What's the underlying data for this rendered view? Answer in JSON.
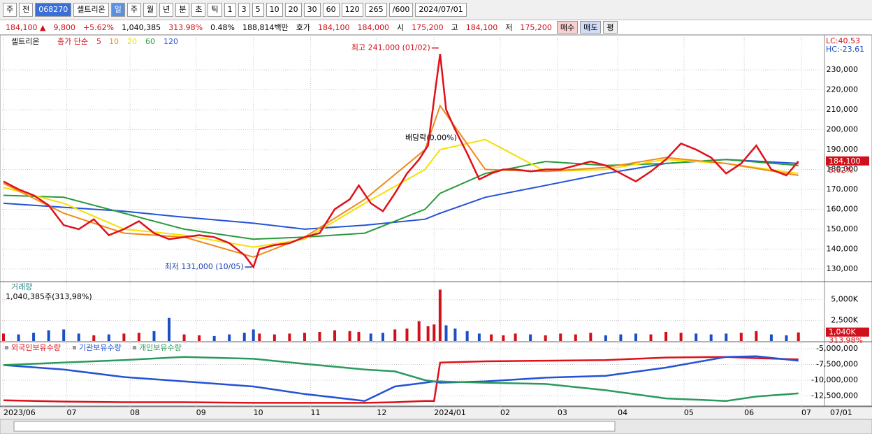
{
  "toolbar": {
    "items": [
      "주",
      "전",
      "068270",
      "셀트리온",
      "일",
      "주",
      "월",
      "년",
      "분",
      "초",
      "틱",
      "1",
      "3",
      "5",
      "10",
      "20",
      "30",
      "60",
      "120",
      "265",
      "/600",
      "2024/07/01"
    ]
  },
  "infobar": {
    "items": [
      {
        "text": "184,100 ▲",
        "color": "#d0101a"
      },
      {
        "text": "9,800",
        "color": "#d0101a"
      },
      {
        "text": "+5.62%",
        "color": "#d0101a"
      },
      {
        "text": "1,040,385",
        "color": "#000"
      },
      {
        "text": "313.98%",
        "color": "#d0101a"
      },
      {
        "text": "0.48%",
        "color": "#000"
      },
      {
        "text": "188,814백만",
        "color": "#000"
      },
      {
        "text": "호가",
        "color": "#000"
      },
      {
        "text": "184,100",
        "color": "#d0101a"
      },
      {
        "text": "184,000",
        "color": "#d0101a"
      },
      {
        "text": "시",
        "color": "#000"
      },
      {
        "text": "175,200",
        "color": "#d0101a"
      },
      {
        "text": "고",
        "color": "#000"
      },
      {
        "text": "184,100",
        "color": "#d0101a"
      },
      {
        "text": "저",
        "color": "#000"
      },
      {
        "text": "175,200",
        "color": "#d0101a"
      },
      {
        "text": "매수",
        "color": "#000"
      },
      {
        "text": "매도",
        "color": "#000"
      },
      {
        "text": "평",
        "color": "#000"
      }
    ]
  },
  "chart_data": [
    {
      "type": "line",
      "title": "셀트리온",
      "legend_label": "종가 단순",
      "xlim": [
        0,
        265
      ],
      "xticks": [
        {
          "value": 0,
          "label": "2023/06"
        },
        {
          "value": 21,
          "label": "07"
        },
        {
          "value": 42,
          "label": "08"
        },
        {
          "value": 64,
          "label": "09"
        },
        {
          "value": 83,
          "label": "10"
        },
        {
          "value": 102,
          "label": "11"
        },
        {
          "value": 124,
          "label": "12"
        },
        {
          "value": 143,
          "label": "2024/01"
        },
        {
          "value": 165,
          "label": "02"
        },
        {
          "value": 184,
          "label": "03"
        },
        {
          "value": 204,
          "label": "04"
        },
        {
          "value": 226,
          "label": "05"
        },
        {
          "value": 246,
          "label": "06"
        },
        {
          "value": 265,
          "label": "07"
        }
      ],
      "xtick_right_label": "07/01",
      "ylim": [
        124000,
        245800
      ],
      "yticks": [
        {
          "value": 130000,
          "label": "130,000"
        },
        {
          "value": 140000,
          "label": "140,000"
        },
        {
          "value": 150000,
          "label": "150,000"
        },
        {
          "value": 160000,
          "label": "160,000"
        },
        {
          "value": 170000,
          "label": "170,000"
        },
        {
          "value": 180000,
          "label": "180,000"
        },
        {
          "value": 190000,
          "label": "190,000"
        },
        {
          "value": 200000,
          "label": "200,000"
        },
        {
          "value": 210000,
          "label": "210,000"
        },
        {
          "value": 220000,
          "label": "220,000"
        },
        {
          "value": 230000,
          "label": "230,000"
        }
      ],
      "series": [
        {
          "name": "5",
          "color": "#e0101a",
          "x": [
            0,
            5,
            10,
            15,
            20,
            25,
            30,
            35,
            40,
            45,
            50,
            55,
            60,
            65,
            70,
            75,
            80,
            83,
            85,
            90,
            95,
            100,
            105,
            110,
            115,
            118,
            122,
            126,
            130,
            134,
            138,
            141,
            143,
            145,
            147,
            150,
            154,
            158,
            162,
            166,
            170,
            175,
            180,
            185,
            190,
            195,
            200,
            205,
            210,
            215,
            220,
            225,
            230,
            235,
            240,
            245,
            250,
            255,
            260,
            264
          ],
          "values": [
            174000,
            170000,
            167000,
            162000,
            152000,
            150000,
            155000,
            147000,
            150000,
            154000,
            148000,
            145000,
            146000,
            147000,
            146000,
            143000,
            137000,
            131000,
            140000,
            142000,
            143000,
            146000,
            148000,
            160000,
            165000,
            172000,
            163000,
            159000,
            168000,
            178000,
            185000,
            192000,
            215000,
            238000,
            210000,
            200000,
            188000,
            175000,
            178000,
            180000,
            180000,
            179000,
            180000,
            180000,
            182000,
            184000,
            182000,
            178000,
            174000,
            179000,
            185000,
            193000,
            190000,
            186000,
            178000,
            183000,
            192000,
            180000,
            177000,
            184100
          ]
        },
        {
          "name": "10",
          "color": "#f08a1c",
          "x": [
            0,
            20,
            40,
            60,
            83,
            100,
            120,
            140,
            145,
            160,
            180,
            200,
            220,
            240,
            264
          ],
          "values": [
            173000,
            158000,
            148000,
            146000,
            136000,
            146000,
            165000,
            190000,
            212000,
            180000,
            179000,
            181000,
            186000,
            183000,
            177000
          ]
        },
        {
          "name": "20",
          "color": "#f5e000",
          "x": [
            0,
            20,
            40,
            60,
            83,
            100,
            120,
            140,
            145,
            160,
            180,
            200,
            220,
            240,
            264
          ],
          "values": [
            171000,
            163000,
            150000,
            147000,
            141000,
            145000,
            163000,
            180000,
            190000,
            195000,
            179000,
            180000,
            185000,
            183000,
            178000
          ]
        },
        {
          "name": "60",
          "color": "#2a9a3c",
          "x": [
            0,
            20,
            40,
            60,
            83,
            100,
            120,
            140,
            145,
            160,
            180,
            200,
            220,
            240,
            264
          ],
          "values": [
            167000,
            166000,
            158000,
            150000,
            145000,
            146000,
            148000,
            160000,
            168000,
            178000,
            184000,
            182000,
            183000,
            185000,
            182000
          ]
        },
        {
          "name": "120",
          "color": "#2452d6",
          "x": [
            0,
            20,
            40,
            60,
            83,
            100,
            120,
            140,
            145,
            160,
            180,
            200,
            220,
            240,
            264
          ],
          "values": [
            163000,
            161000,
            159000,
            156000,
            153000,
            150000,
            152000,
            155000,
            158000,
            166000,
            172000,
            178000,
            183000,
            185000,
            183000
          ]
        }
      ],
      "annotations": [
        {
          "text": "최고 241,000 (01/02)",
          "x": 145,
          "y": 241000
        },
        {
          "text": "최저 131,000 (10/05)",
          "x": 83,
          "y": 131000
        },
        {
          "text": "배당락(0.00%)",
          "x": 142,
          "y": 193000
        }
      ],
      "last_label": "184,100",
      "change_label": "5.62%",
      "lc_label": "LC:40.53",
      "hc_label": "HC:-23.61"
    },
    {
      "type": "bar",
      "title": "거래량",
      "subtitle": "1,040,385주(313,98%)",
      "up_color": "#d0101a",
      "down_color": "#1d4fc4",
      "ylim": [
        0,
        7000000
      ],
      "yticks": [
        {
          "value": 2500000,
          "label": "2,500K"
        },
        {
          "value": 5000000,
          "label": "5,000K"
        }
      ],
      "values": [
        900000,
        800000,
        1000000,
        1300000,
        1400000,
        900000,
        700000,
        800000,
        900000,
        1000000,
        1200000,
        2800000,
        800000,
        700000,
        600000,
        800000,
        1000000,
        1400000,
        900000,
        800000,
        900000,
        1000000,
        1100000,
        1300000,
        1200000,
        1100000,
        900000,
        1000000,
        1400000,
        1500000,
        2400000,
        1800000,
        2000000,
        6200000,
        1900000,
        1500000,
        1200000,
        900000,
        800000,
        700000,
        900000,
        800000,
        700000,
        900000,
        800000,
        1000000,
        700000,
        800000,
        900000,
        800000,
        1100000,
        1000000,
        900000,
        800000,
        900000,
        1000000,
        1200000,
        800000,
        700000,
        1040385
      ],
      "last_label": "1,040K",
      "ratio_label": "313.98%"
    },
    {
      "type": "line",
      "ylim": [
        -14000000,
        -4000000
      ],
      "yticks": [
        {
          "value": -12500000,
          "label": "-12,500,000"
        },
        {
          "value": -10000000,
          "label": "-10,000,000"
        },
        {
          "value": -7500000,
          "label": "-7,500,000"
        },
        {
          "value": -5000000,
          "label": "-5,000,000"
        }
      ],
      "series": [
        {
          "name": "외국인보유수량",
          "color": "#e0101a",
          "x": [
            0,
            20,
            40,
            60,
            83,
            100,
            120,
            130,
            140,
            143,
            145,
            160,
            180,
            200,
            220,
            240,
            250,
            264
          ],
          "values": [
            -13200000,
            -13400000,
            -13500000,
            -13500000,
            -13600000,
            -13600000,
            -13600000,
            -13500000,
            -13300000,
            -13300000,
            -7200000,
            -7000000,
            -6900000,
            -6800000,
            -6400000,
            -6300000,
            -6500000,
            -6700000
          ]
        },
        {
          "name": "기관보유수량",
          "color": "#2452d6",
          "x": [
            0,
            20,
            40,
            60,
            83,
            100,
            120,
            130,
            140,
            143,
            145,
            160,
            180,
            200,
            220,
            240,
            250,
            264
          ],
          "values": [
            -7600000,
            -8300000,
            -9500000,
            -10200000,
            -11000000,
            -12200000,
            -13300000,
            -11000000,
            -10400000,
            -10200000,
            -10400000,
            -10200000,
            -9600000,
            -9300000,
            -8000000,
            -6300000,
            -6200000,
            -6900000
          ]
        },
        {
          "name": "개인보유수량",
          "color": "#2a9a5c",
          "x": [
            0,
            20,
            40,
            60,
            83,
            100,
            120,
            130,
            140,
            143,
            145,
            160,
            180,
            200,
            220,
            240,
            250,
            264
          ],
          "values": [
            -7600000,
            -7200000,
            -6800000,
            -6300000,
            -6600000,
            -7400000,
            -8300000,
            -8600000,
            -10000000,
            -10200000,
            -10200000,
            -10400000,
            -10600000,
            -11600000,
            -12900000,
            -13300000,
            -12600000,
            -12100000
          ]
        }
      ]
    }
  ]
}
